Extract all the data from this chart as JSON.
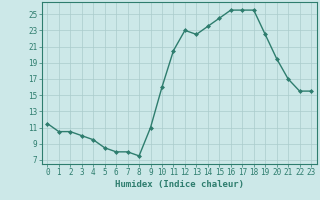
{
  "x": [
    0,
    1,
    2,
    3,
    4,
    5,
    6,
    7,
    8,
    9,
    10,
    11,
    12,
    13,
    14,
    15,
    16,
    17,
    18,
    19,
    20,
    21,
    22,
    23
  ],
  "y": [
    11.5,
    10.5,
    10.5,
    10.0,
    9.5,
    8.5,
    8.0,
    8.0,
    7.5,
    11.0,
    16.0,
    20.5,
    23.0,
    22.5,
    23.5,
    24.5,
    25.5,
    25.5,
    25.5,
    22.5,
    19.5,
    17.0,
    15.5,
    15.5
  ],
  "line_color": "#2e7d6e",
  "marker": "D",
  "markersize": 2.0,
  "linewidth": 1.0,
  "bg_color": "#cce8e8",
  "grid_color": "#aacccc",
  "title": "",
  "xlabel": "Humidex (Indice chaleur)",
  "ylabel": "",
  "xlim": [
    -0.5,
    23.5
  ],
  "ylim": [
    6.5,
    26.5
  ],
  "yticks": [
    7,
    9,
    11,
    13,
    15,
    17,
    19,
    21,
    23,
    25
  ],
  "xtick_labels": [
    "0",
    "1",
    "2",
    "3",
    "4",
    "5",
    "6",
    "7",
    "8",
    "9",
    "10",
    "11",
    "12",
    "13",
    "14",
    "15",
    "16",
    "17",
    "18",
    "19",
    "20",
    "21",
    "22",
    "23"
  ],
  "xlabel_fontsize": 6.5,
  "tick_fontsize": 5.5,
  "tick_color": "#2e7d6e",
  "label_color": "#2e7d6e",
  "spine_color": "#2e7d6e"
}
